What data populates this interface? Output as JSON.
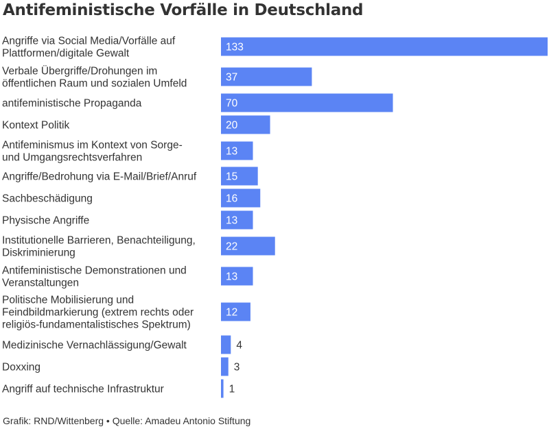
{
  "colors": {
    "bar": "#5b84f4",
    "text": "#333333",
    "label_inside": "#ffffff"
  },
  "chart_data": {
    "type": "bar",
    "orientation": "horizontal",
    "title": "Antifeministische Vorfälle in Deutschland",
    "xlim": [
      0,
      133
    ],
    "grid": false,
    "legend": "none",
    "categories": [
      [
        "Angriffe via Social Media/Vorfälle auf",
        "Plattformen/digitale Gewalt"
      ],
      [
        "Verbale Übergriffe/Drohungen im",
        "öffentlichen Raum und sozialen Umfeld"
      ],
      [
        "antifeministische Propaganda"
      ],
      [
        "Kontext Politik"
      ],
      [
        "Antifeminismus im Kontext von Sorge-",
        "und Umgangsrechtsverfahren"
      ],
      [
        "Angriffe/Bedrohung via E-Mail/Brief/Anruf"
      ],
      [
        "Sachbeschädigung"
      ],
      [
        "Physische Angriffe"
      ],
      [
        "Institutionelle Barrieren, Benachteiligung,",
        "Diskriminierung"
      ],
      [
        "Antifeministische Demonstrationen und",
        "Veranstaltungen"
      ],
      [
        "Politische Mobilisierung und",
        "Feindbildmarkierung (extrem rechts oder",
        "religiös-fundamentalistisches Spektrum)"
      ],
      [
        "Medizinische Vernachlässigung/Gewalt"
      ],
      [
        "Doxxing"
      ],
      [
        "Angriff auf technische Infrastruktur"
      ]
    ],
    "values": [
      133,
      37,
      70,
      20,
      13,
      15,
      16,
      13,
      22,
      13,
      12,
      4,
      3,
      1
    ]
  },
  "footer": {
    "source": "Grafik: RND/Wittenberg • Quelle: Amadeu Antonio Stiftung"
  }
}
